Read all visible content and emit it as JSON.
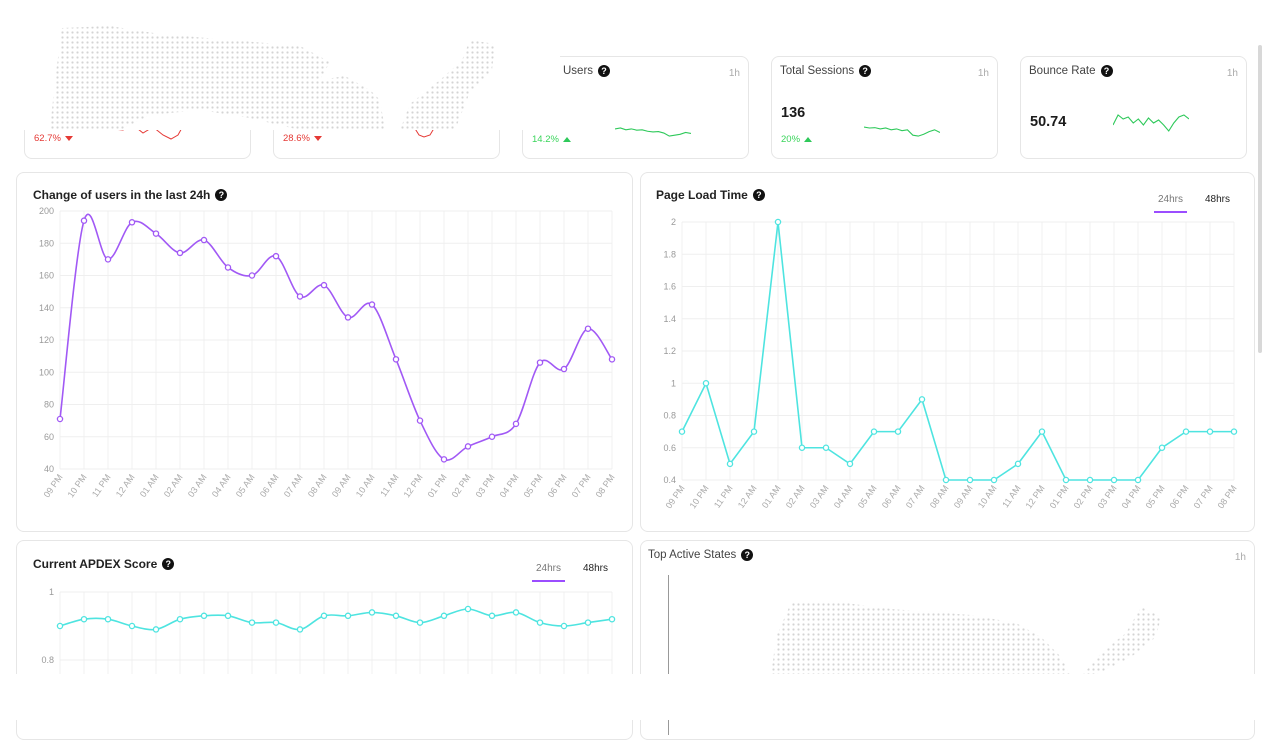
{
  "colors": {
    "purple": "#a159f5",
    "cyan": "#4ee4e0",
    "green": "#2ec95a",
    "red": "#e53935"
  },
  "kpis": [
    {
      "delta": "62.7%",
      "direction": "down"
    },
    {
      "delta": "28.6%",
      "direction": "down"
    },
    {
      "title": "Users",
      "period": "1h",
      "delta": "14.2%",
      "direction": "up"
    },
    {
      "title": "Total Sessions",
      "period": "1h",
      "value": "136",
      "delta": "20%",
      "direction": "up"
    },
    {
      "title": "Bounce Rate",
      "period": "1h",
      "value": "50.74"
    }
  ],
  "tabs": {
    "h24": "24hrs",
    "h48": "48hrs"
  },
  "time_labels": [
    "09 PM",
    "10 PM",
    "11 PM",
    "12 AM",
    "01 AM",
    "02 AM",
    "03 AM",
    "04 AM",
    "05 AM",
    "06 AM",
    "07 AM",
    "08 AM",
    "09 AM",
    "10 AM",
    "11 AM",
    "12 PM",
    "01 PM",
    "02 PM",
    "03 PM",
    "04 PM",
    "05 PM",
    "06 PM",
    "07 PM",
    "08 PM"
  ],
  "active_states": {
    "title": "Top Active States",
    "period": "1h"
  },
  "chart_data": [
    {
      "type": "line",
      "title": "Change of users in the last 24h",
      "categories": [
        "09 PM",
        "10 PM",
        "11 PM",
        "12 AM",
        "01 AM",
        "02 AM",
        "03 AM",
        "04 AM",
        "05 AM",
        "06 AM",
        "07 AM",
        "08 AM",
        "09 AM",
        "10 AM",
        "11 AM",
        "12 PM",
        "01 PM",
        "02 PM",
        "03 PM",
        "04 PM",
        "05 PM",
        "06 PM",
        "07 PM",
        "08 PM"
      ],
      "values": [
        71,
        194,
        170,
        193,
        186,
        174,
        182,
        165,
        160,
        172,
        147,
        154,
        134,
        142,
        108,
        70,
        46,
        54,
        60,
        68,
        106,
        102,
        127,
        108
      ],
      "ylim": [
        40,
        200
      ],
      "yticks": [
        40,
        60,
        80,
        100,
        120,
        140,
        160,
        180,
        200
      ]
    },
    {
      "type": "line",
      "title": "Page Load Time",
      "categories": [
        "09 PM",
        "10 PM",
        "11 PM",
        "12 AM",
        "01 AM",
        "02 AM",
        "03 AM",
        "04 AM",
        "05 AM",
        "06 AM",
        "07 AM",
        "08 AM",
        "09 AM",
        "10 AM",
        "11 AM",
        "12 PM",
        "01 PM",
        "02 PM",
        "03 PM",
        "04 PM",
        "05 PM",
        "06 PM",
        "07 PM",
        "08 PM"
      ],
      "values": [
        0.7,
        1.0,
        0.5,
        0.7,
        2.0,
        0.6,
        0.6,
        0.5,
        0.7,
        0.7,
        0.9,
        0.4,
        0.4,
        0.4,
        0.5,
        0.7,
        0.4,
        0.4,
        0.4,
        0.4,
        0.6,
        0.7,
        0.7,
        0.7
      ],
      "ylim": [
        0.4,
        2.0
      ],
      "yticks": [
        "0.4",
        "0.6",
        "0.8",
        "1",
        "1.2",
        "1.4",
        "1.6",
        "1.8",
        "2"
      ]
    },
    {
      "type": "line",
      "title": "Current APDEX Score",
      "values": [
        0.9,
        0.92,
        0.92,
        0.9,
        0.89,
        0.92,
        0.93,
        0.93,
        0.91,
        0.91,
        0.89,
        0.93,
        0.93,
        0.94,
        0.93,
        0.91,
        0.93,
        0.95,
        0.93,
        0.94,
        0.91,
        0.9,
        0.91,
        0.92
      ],
      "ylim": [
        0.7,
        1.0
      ],
      "yticks": [
        "0.8",
        "1"
      ]
    }
  ],
  "sparklines": {
    "users": [
      0.55,
      0.5,
      0.6,
      0.55,
      0.62,
      0.6,
      0.68,
      0.72,
      0.7,
      0.78,
      0.95,
      0.9,
      0.85,
      0.75,
      0.8
    ],
    "sessions": [
      0.45,
      0.5,
      0.48,
      0.55,
      0.5,
      0.6,
      0.55,
      0.65,
      0.6,
      0.9,
      0.95,
      0.85,
      0.7,
      0.6,
      0.75
    ],
    "bounce": [
      0.6,
      0.1,
      0.3,
      0.2,
      0.5,
      0.3,
      0.6,
      0.25,
      0.5,
      0.35,
      0.6,
      0.9,
      0.5,
      0.2,
      0.1,
      0.3
    ]
  }
}
